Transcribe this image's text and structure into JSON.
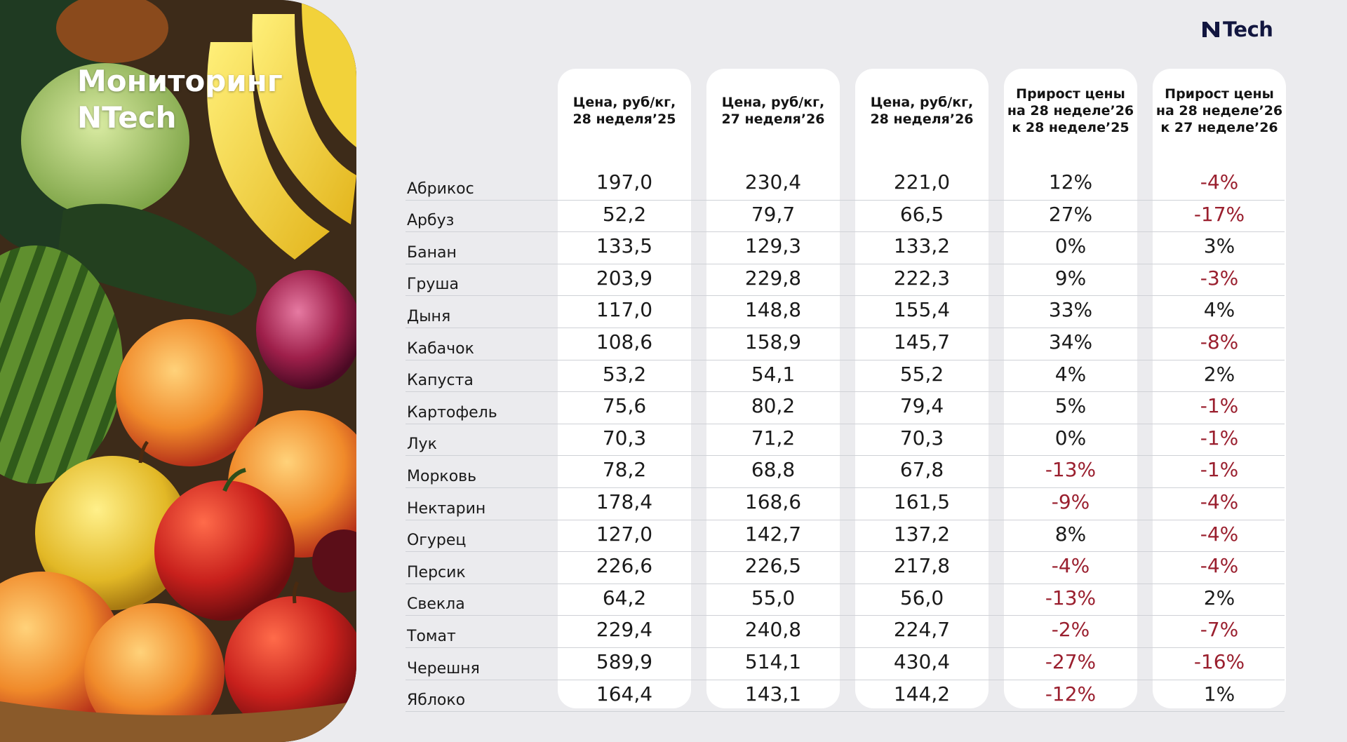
{
  "title": [
    "Мониторинг",
    "NTech"
  ],
  "logo": {
    "text": "Tech",
    "brand_color": "#12163f"
  },
  "colors": {
    "negative": "#9a1f2e",
    "text": "#1a1a1a",
    "card": "#ffffff",
    "background": "#ebebee"
  },
  "columns": [
    [
      "Цена, руб/кг,",
      "28 неделя’25"
    ],
    [
      "Цена, руб/кг,",
      "27 неделя’26"
    ],
    [
      "Цена, руб/кг,",
      "28 неделя’26"
    ],
    [
      "Прирост цены",
      "на 28 неделе’26",
      "к 28 неделе’25"
    ],
    [
      "Прирост цены",
      "на 28 неделе’26",
      "к 27 неделе’26"
    ]
  ],
  "rows": [
    {
      "name": "Абрикос",
      "values": [
        "197,0",
        "230,4",
        "221,0",
        "12%",
        "-4%"
      ]
    },
    {
      "name": "Арбуз",
      "values": [
        "52,2",
        "79,7",
        "66,5",
        "27%",
        "-17%"
      ]
    },
    {
      "name": "Банан",
      "values": [
        "133,5",
        "129,3",
        "133,2",
        "0%",
        "3%"
      ]
    },
    {
      "name": "Груша",
      "values": [
        "203,9",
        "229,8",
        "222,3",
        "9%",
        "-3%"
      ]
    },
    {
      "name": "Дыня",
      "values": [
        "117,0",
        "148,8",
        "155,4",
        "33%",
        "4%"
      ]
    },
    {
      "name": "Кабачок",
      "values": [
        "108,6",
        "158,9",
        "145,7",
        "34%",
        "-8%"
      ]
    },
    {
      "name": "Капуста",
      "values": [
        "53,2",
        "54,1",
        "55,2",
        "4%",
        "2%"
      ]
    },
    {
      "name": "Картофель",
      "values": [
        "75,6",
        "80,2",
        "79,4",
        "5%",
        "-1%"
      ]
    },
    {
      "name": "Лук",
      "values": [
        "70,3",
        "71,2",
        "70,3",
        "0%",
        "-1%"
      ]
    },
    {
      "name": "Морковь",
      "values": [
        "78,2",
        "68,8",
        "67,8",
        "-13%",
        "-1%"
      ]
    },
    {
      "name": "Нектарин",
      "values": [
        "178,4",
        "168,6",
        "161,5",
        "-9%",
        "-4%"
      ]
    },
    {
      "name": "Огурец",
      "values": [
        "127,0",
        "142,7",
        "137,2",
        "8%",
        "-4%"
      ]
    },
    {
      "name": "Персик",
      "values": [
        "226,6",
        "226,5",
        "217,8",
        "-4%",
        "-4%"
      ]
    },
    {
      "name": "Свекла",
      "values": [
        "64,2",
        "55,0",
        "56,0",
        "-13%",
        "2%"
      ]
    },
    {
      "name": "Томат",
      "values": [
        "229,4",
        "240,8",
        "224,7",
        "-2%",
        "-7%"
      ]
    },
    {
      "name": "Черешня",
      "values": [
        "589,9",
        "514,1",
        "430,4",
        "-27%",
        "-16%"
      ]
    },
    {
      "name": "Яблоко",
      "values": [
        "164,4",
        "143,1",
        "144,2",
        "-12%",
        "1%"
      ]
    }
  ]
}
